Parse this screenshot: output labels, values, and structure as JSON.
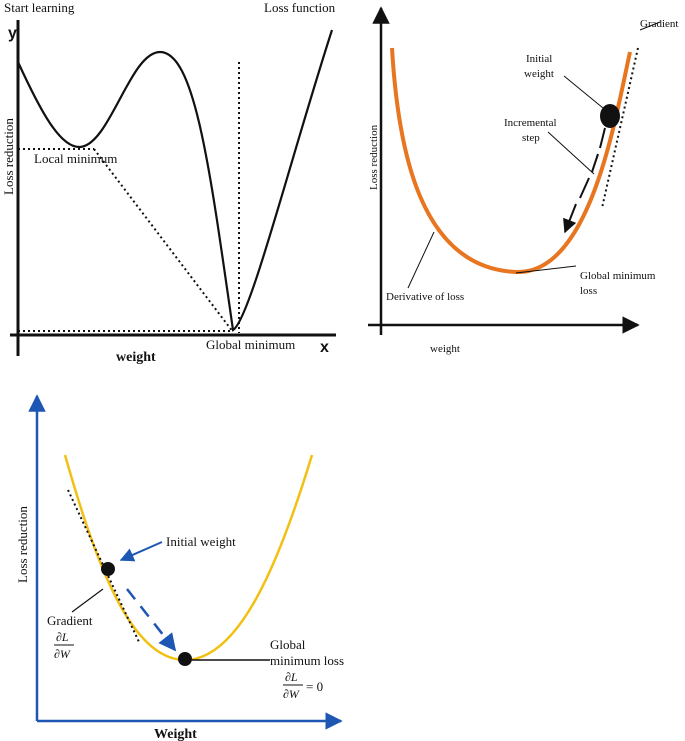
{
  "colors": {
    "ink": "#111111",
    "panel2_curve": "#e8751f",
    "panel3_curve": "#f2c014",
    "panel3_axis": "#1e56b3",
    "panel3_step": "#1e56b3"
  },
  "panel1": {
    "title_left": "Start learning",
    "title_right": "Loss function",
    "y_letter": "y",
    "x_letter": "x",
    "ylabel": "Loss reduction",
    "xlabel": "weight",
    "local_min_label": "Local minimum",
    "global_min_label": "Global minimum"
  },
  "panel2": {
    "ylabel": "Loss reduction",
    "xlabel": "weight",
    "gradient_label": "Gradient",
    "initial_weight_label": [
      "Initial",
      "weight"
    ],
    "incremental_step_label": [
      "Incremental",
      "step"
    ],
    "derivative_label": "Derivative of loss",
    "global_min_label": [
      "Global minimum",
      "loss"
    ]
  },
  "panel3": {
    "ylabel": "Loss reduction",
    "xlabel": "Weight",
    "initial_weight_label": "Initial weight",
    "gradient_label": "Gradient",
    "gradient_frac_num": "∂L",
    "gradient_frac_den": "∂W",
    "global_min_label": [
      "Global",
      "minimum loss"
    ],
    "global_frac_num": "∂L",
    "global_frac_den": "∂W",
    "global_frac_value": "= 0"
  }
}
